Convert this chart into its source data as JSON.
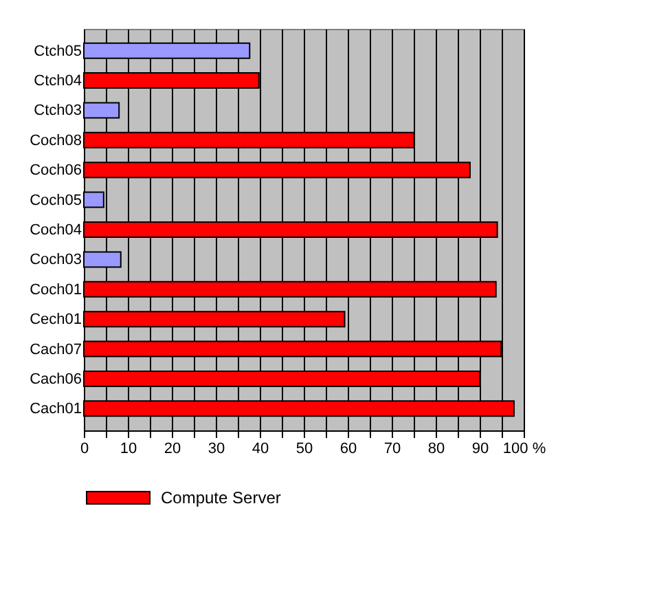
{
  "chart_data": {
    "type": "bar",
    "orientation": "horizontal",
    "categories": [
      "Ctch05",
      "Ctch04",
      "Ctch03",
      "Coch08",
      "Coch06",
      "Coch05",
      "Coch04",
      "Coch03",
      "Coch01",
      "Cech01",
      "Cach07",
      "Cach06",
      "Cach01"
    ],
    "series": [
      {
        "name": "Compute Server",
        "color": "#ff0000",
        "values": [
          37.7,
          39.8,
          8.0,
          75.1,
          87.8,
          4.5,
          94.0,
          8.4,
          93.7,
          59.3,
          94.9,
          90.0,
          97.8
        ],
        "colors": [
          "#9999ff",
          "#ff0000",
          "#9999ff",
          "#ff0000",
          "#ff0000",
          "#9999ff",
          "#ff0000",
          "#9999ff",
          "#ff0000",
          "#ff0000",
          "#ff0000",
          "#ff0000",
          "#ff0000"
        ]
      }
    ],
    "xlim": [
      0,
      100
    ],
    "xticks": [
      0,
      {
        "value": 5,
        "label": null
      },
      10,
      {
        "value": 15,
        "label": null
      },
      20,
      {
        "value": 25,
        "label": null
      },
      30,
      {
        "value": 35,
        "label": null
      },
      40,
      {
        "value": 45,
        "label": null
      },
      50,
      {
        "value": 55,
        "label": null
      },
      60,
      {
        "value": 65,
        "label": null
      },
      70,
      {
        "value": 75,
        "label": null
      },
      80,
      {
        "value": 85,
        "label": null
      },
      90,
      {
        "value": 95,
        "label": null
      },
      {
        "value": 100,
        "label": "100 %"
      }
    ],
    "grid": "x",
    "legend": "bottom"
  }
}
